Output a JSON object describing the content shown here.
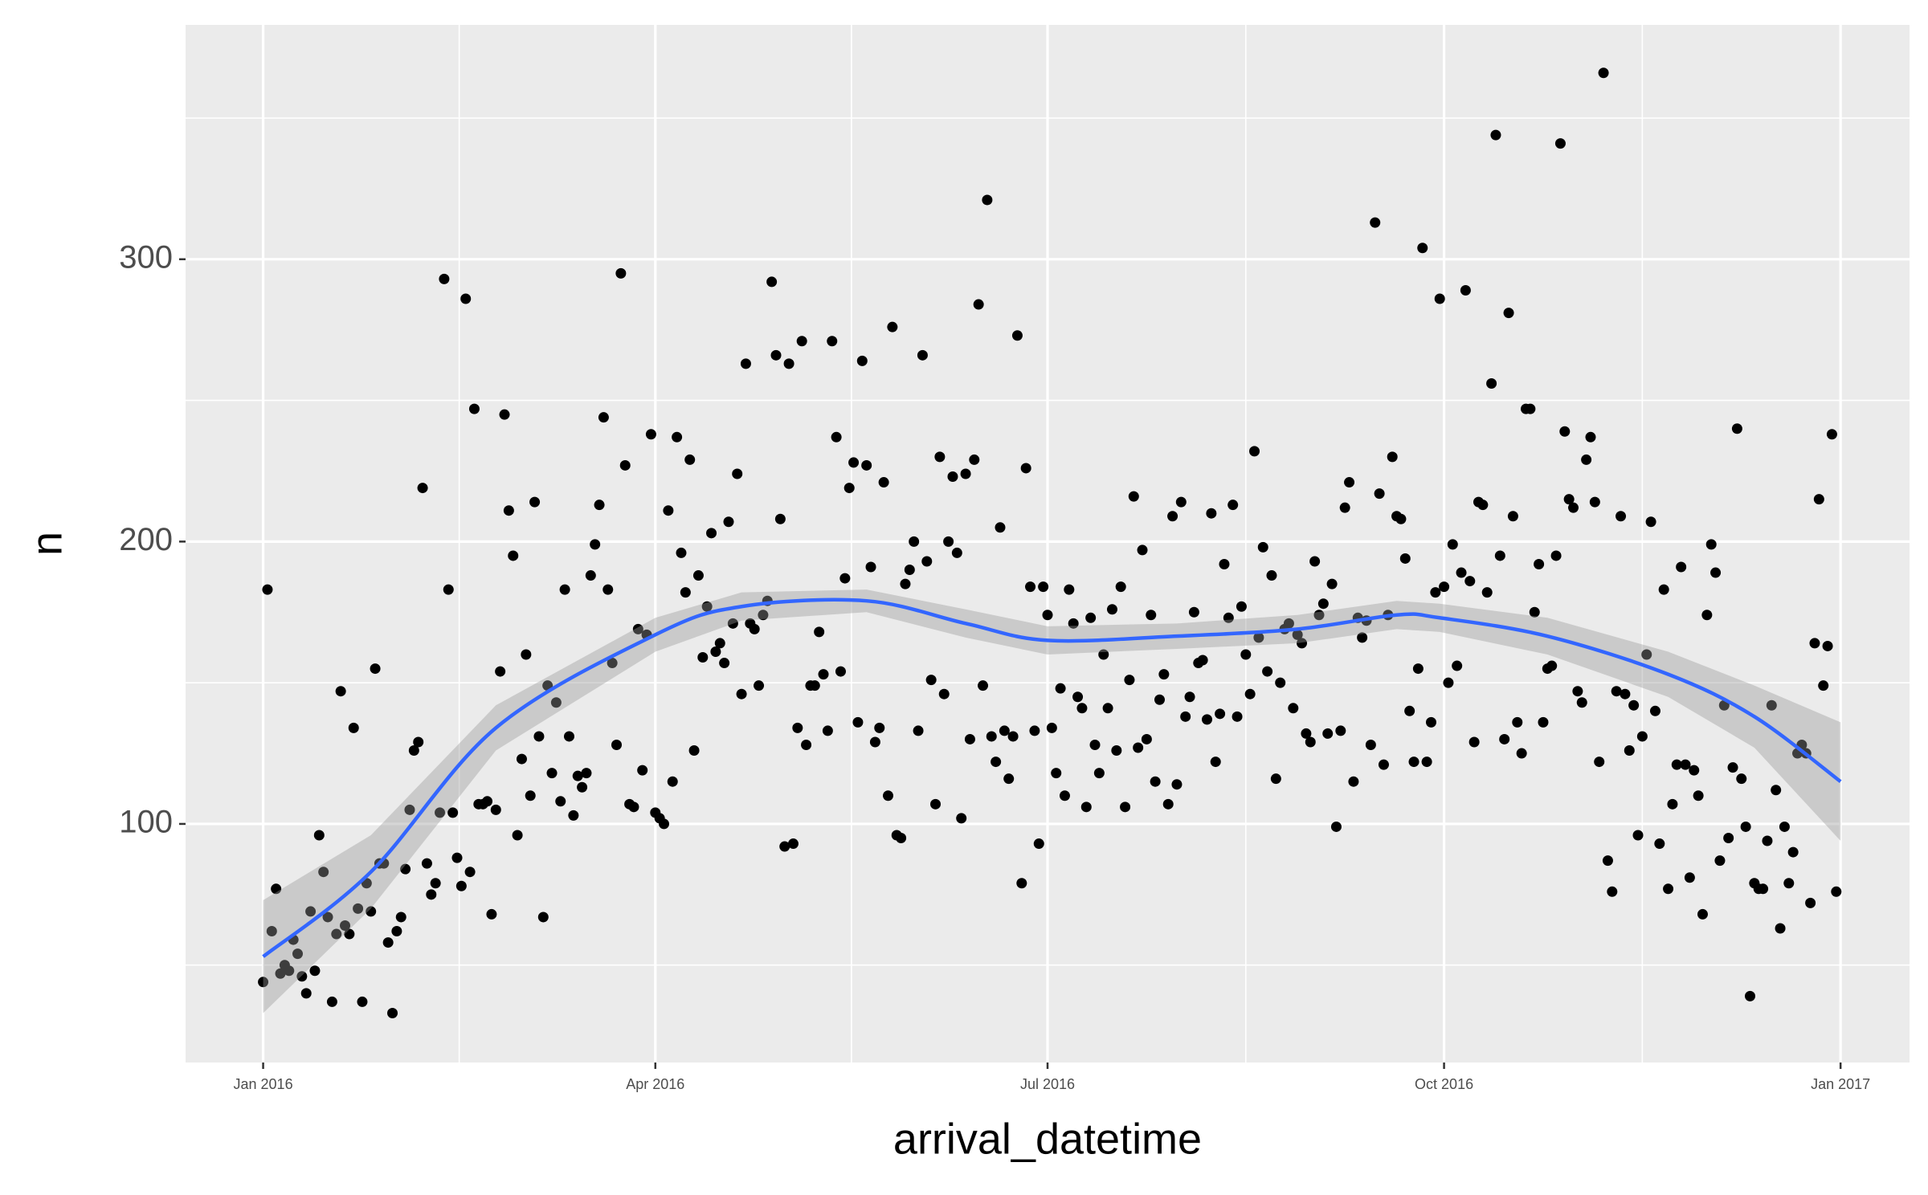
{
  "chart_data": {
    "type": "scatter",
    "x_label": "arrival_datetime",
    "y_label": "n",
    "x": [
      0,
      1,
      2,
      3,
      4,
      5,
      6,
      7,
      8,
      9,
      10,
      11,
      12,
      13,
      14,
      15,
      16,
      17,
      18,
      19,
      20,
      21,
      22,
      23,
      24,
      25,
      26,
      27,
      28,
      29,
      30,
      31,
      32,
      33,
      34,
      35,
      36,
      37,
      38,
      39,
      40,
      41,
      42,
      43,
      44,
      45,
      46,
      47,
      48,
      49,
      50,
      51,
      52,
      53,
      54,
      55,
      56,
      57,
      58,
      59,
      60,
      61,
      62,
      63,
      64,
      65,
      66,
      67,
      68,
      69,
      70,
      71,
      72,
      73,
      74,
      75,
      76,
      77,
      78,
      79,
      80,
      81,
      82,
      83,
      84,
      85,
      86,
      87,
      88,
      89,
      90,
      91,
      92,
      93,
      94,
      95,
      96,
      97,
      98,
      99,
      100,
      101,
      102,
      103,
      104,
      105,
      106,
      107,
      108,
      109,
      110,
      111,
      112,
      113,
      114,
      115,
      116,
      117,
      118,
      119,
      120,
      121,
      122,
      123,
      124,
      125,
      126,
      127,
      128,
      129,
      130,
      131,
      132,
      133,
      134,
      135,
      136,
      137,
      138,
      139,
      140,
      141,
      142,
      143,
      144,
      145,
      146,
      147,
      148,
      149,
      150,
      151,
      152,
      153,
      154,
      155,
      156,
      157,
      158,
      159,
      160,
      161,
      162,
      163,
      164,
      165,
      166,
      167,
      168,
      169,
      170,
      171,
      172,
      173,
      174,
      175,
      176,
      177,
      178,
      179,
      180,
      181,
      182,
      183,
      184,
      185,
      186,
      187,
      188,
      189,
      190,
      191,
      192,
      193,
      194,
      195,
      196,
      197,
      198,
      199,
      200,
      201,
      202,
      203,
      204,
      205,
      206,
      207,
      208,
      209,
      210,
      211,
      212,
      213,
      214,
      215,
      216,
      217,
      218,
      219,
      220,
      221,
      222,
      223,
      224,
      225,
      226,
      227,
      228,
      229,
      230,
      231,
      232,
      233,
      234,
      235,
      236,
      237,
      238,
      239,
      240,
      241,
      242,
      243,
      244,
      245,
      246,
      247,
      248,
      249,
      250,
      251,
      252,
      253,
      254,
      255,
      256,
      257,
      258,
      259,
      260,
      261,
      262,
      263,
      264,
      265,
      266,
      267,
      268,
      269,
      270,
      271,
      272,
      273,
      274,
      275,
      276,
      277,
      278,
      279,
      280,
      281,
      282,
      283,
      284,
      285,
      286,
      287,
      288,
      289,
      290,
      291,
      292,
      293,
      294,
      295,
      296,
      297,
      298,
      299,
      300,
      301,
      302,
      303,
      304,
      305,
      306,
      307,
      308,
      309,
      310,
      311,
      312,
      313,
      314,
      315,
      316,
      317,
      318,
      319,
      320,
      321,
      322,
      323,
      324,
      325,
      326,
      327,
      328,
      329,
      330,
      331,
      332,
      333,
      334,
      335,
      336,
      337,
      338,
      339,
      340,
      341,
      342,
      343,
      344,
      345,
      346,
      347,
      348,
      349,
      350,
      351,
      352,
      353,
      354,
      355,
      356,
      357,
      358,
      359,
      360,
      361,
      362,
      363,
      364,
      365
    ],
    "values": [
      44,
      183,
      62,
      77,
      47,
      50,
      48,
      59,
      54,
      46,
      40,
      69,
      48,
      96,
      83,
      67,
      37,
      61,
      147,
      64,
      61,
      134,
      70,
      37,
      79,
      69,
      155,
      86,
      86,
      58,
      33,
      62,
      67,
      84,
      105,
      126,
      129,
      219,
      86,
      75,
      79,
      104,
      293,
      183,
      104,
      88,
      78,
      286,
      83,
      247,
      107,
      107,
      108,
      68,
      105,
      154,
      245,
      211,
      195,
      96,
      123,
      160,
      110,
      214,
      131,
      67,
      149,
      118,
      143,
      108,
      183,
      131,
      103,
      117,
      113,
      118,
      188,
      199,
      213,
      244,
      183,
      157,
      128,
      295,
      227,
      107,
      106,
      169,
      119,
      167,
      238,
      104,
      102,
      100,
      211,
      115,
      237,
      196,
      182,
      229,
      126,
      188,
      159,
      177,
      203,
      161,
      164,
      157,
      207,
      171,
      224,
      146,
      263,
      171,
      169,
      149,
      174,
      179,
      292,
      266,
      208,
      92,
      263,
      93,
      134,
      271,
      128,
      149,
      149,
      168,
      153,
      133,
      271,
      237,
      154,
      187,
      219,
      228,
      136,
      264,
      227,
      191,
      129,
      134,
      221,
      110,
      276,
      96,
      95,
      185,
      190,
      200,
      133,
      266,
      193,
      151,
      107,
      230,
      146,
      200,
      223,
      196,
      102,
      224,
      130,
      229,
      284,
      149,
      321,
      131,
      122,
      205,
      133,
      116,
      131,
      273,
      79,
      226,
      184,
      133,
      93,
      184,
      174,
      134,
      118,
      148,
      110,
      183,
      171,
      145,
      141,
      106,
      173,
      128,
      118,
      160,
      141,
      176,
      126,
      184,
      106,
      151,
      216,
      127,
      197,
      130,
      174,
      115,
      144,
      153,
      107,
      209,
      114,
      214,
      138,
      145,
      175,
      157,
      158,
      137,
      210,
      122,
      139,
      192,
      173,
      213,
      138,
      177,
      160,
      146,
      232,
      166,
      198,
      154,
      188,
      116,
      150,
      169,
      171,
      141,
      167,
      164,
      132,
      129,
      193,
      174,
      178,
      132,
      185,
      99,
      133,
      212,
      221,
      115,
      173,
      166,
      172,
      128,
      313,
      217,
      121,
      174,
      230,
      209,
      208,
      194,
      140,
      122,
      155,
      304,
      122,
      136,
      182,
      286,
      184,
      150,
      199,
      156,
      189,
      289,
      186,
      129,
      214,
      213,
      182,
      256,
      344,
      195,
      130,
      281,
      209,
      136,
      125,
      247,
      247,
      175,
      192,
      136,
      155,
      156,
      195,
      341,
      239,
      215,
      212,
      147,
      143,
      229,
      237,
      214,
      122,
      366,
      87,
      76,
      147,
      209,
      146,
      126,
      142,
      96,
      131,
      160,
      207,
      140,
      93,
      183,
      77,
      107,
      121,
      191,
      121,
      81,
      119,
      110,
      68,
      174,
      199,
      189,
      87,
      142,
      95,
      120,
      240,
      116,
      99,
      39,
      79,
      77,
      77,
      94,
      142,
      112,
      63,
      99,
      79,
      90,
      125,
      128,
      125,
      72,
      164,
      215,
      149,
      163,
      238,
      76
    ],
    "color": "#000000",
    "smooth": {
      "x": [
        0,
        25,
        54,
        91,
        111,
        140,
        163,
        182,
        212,
        240,
        263,
        273,
        298,
        326,
        346,
        366
      ],
      "values": [
        53,
        83,
        134,
        167,
        177,
        179,
        171,
        165,
        166.5,
        169,
        174,
        173,
        166.5,
        153,
        138,
        115
      ],
      "lower": [
        33,
        70,
        126,
        161,
        172,
        175,
        166,
        160,
        162,
        164,
        169,
        168,
        160,
        145,
        127,
        94
      ],
      "upper": [
        73,
        96,
        142,
        173,
        182,
        183,
        176,
        170,
        171,
        174,
        179,
        178,
        173,
        161,
        149,
        136
      ],
      "color": "#3366FF",
      "band_color": "#999999"
    },
    "xlim": [
      -18,
      382
    ],
    "ylim": [
      15.5,
      383
    ],
    "xticks": [
      {
        "value": 0,
        "label": "Jan 2016"
      },
      {
        "value": 91,
        "label": "Apr 2016"
      },
      {
        "value": 182,
        "label": "Jul 2016"
      },
      {
        "value": 274,
        "label": "Oct 2016"
      },
      {
        "value": 366,
        "label": "Jan 2017"
      }
    ],
    "yticks": [
      100,
      200,
      300
    ],
    "grid": true
  }
}
